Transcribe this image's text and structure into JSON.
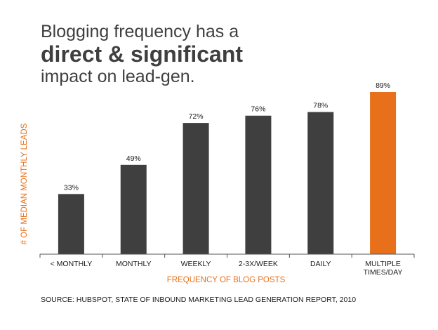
{
  "title": {
    "line1": "Blogging frequency has a",
    "line2": "direct & significant",
    "line3": "impact on lead-gen."
  },
  "chart_data": {
    "type": "bar",
    "categories": [
      "< MONTHLY",
      "MONTHLY",
      "WEEKLY",
      "2-3X/WEEK",
      "DAILY",
      "MULTIPLE TIMES/DAY"
    ],
    "category_lines": [
      [
        "< MONTHLY"
      ],
      [
        "MONTHLY"
      ],
      [
        "WEEKLY"
      ],
      [
        "2-3X/WEEK"
      ],
      [
        "DAILY"
      ],
      [
        "MULTIPLE",
        "TIMES/DAY"
      ]
    ],
    "values": [
      33,
      49,
      72,
      76,
      78,
      89
    ],
    "data_labels": [
      "33%",
      "49%",
      "72%",
      "76%",
      "78%",
      "89%"
    ],
    "xlabel": "FREQUENCY OF BLOG POSTS",
    "ylabel": "# OF MEDIAN MONTHLY LEADS",
    "ylim": [
      0,
      89
    ],
    "grid": false,
    "colors": {
      "bar": "#3f3f3f",
      "highlight": "#e8701a",
      "axis_label": "#e8701a"
    },
    "highlight_index": 5
  },
  "source": "SOURCE: HUBSPOT, STATE OF INBOUND MARKETING LEAD GENERATION REPORT, 2010"
}
